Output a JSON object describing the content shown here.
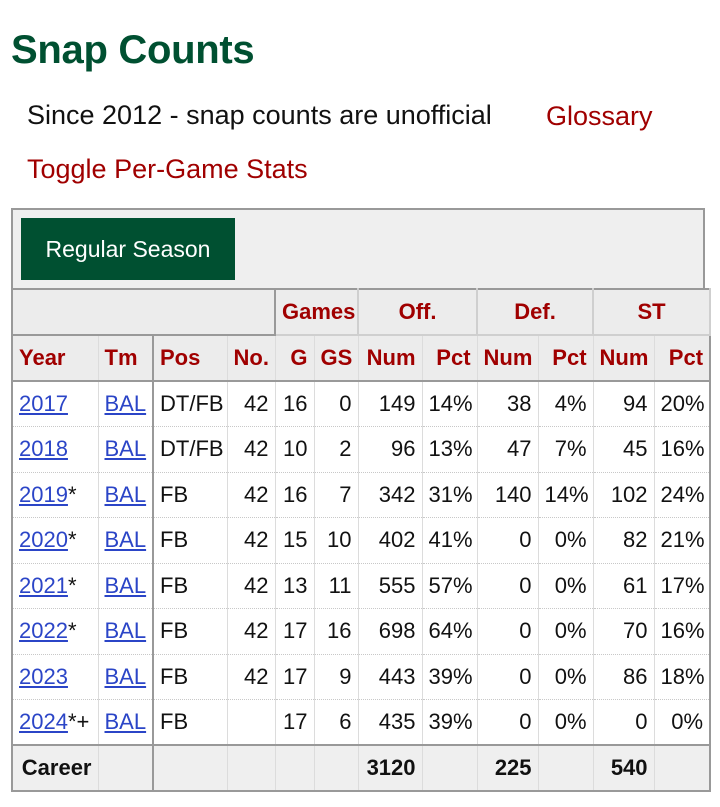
{
  "header": {
    "title": "Snap Counts",
    "subtitle": "Since 2012 - snap counts are unofficial",
    "glossary_link": "Glossary",
    "toggle_link": "Toggle Per-Game Stats"
  },
  "tabs": {
    "active_label": "Regular Season"
  },
  "table": {
    "over_headers": {
      "games": "Games",
      "off": "Off.",
      "def": "Def.",
      "st": "ST"
    },
    "columns": [
      "Year",
      "Tm",
      "Pos",
      "No.",
      "G",
      "GS",
      "Num",
      "Pct",
      "Num",
      "Pct",
      "Num",
      "Pct"
    ],
    "rows": [
      {
        "year": "2017",
        "mark": "",
        "tm": "BAL",
        "pos": "DT/FB",
        "no": "42",
        "g": "16",
        "gs": "0",
        "off_num": "149",
        "off_pct": "14%",
        "def_num": "38",
        "def_pct": "4%",
        "st_num": "94",
        "st_pct": "20%"
      },
      {
        "year": "2018",
        "mark": "",
        "tm": "BAL",
        "pos": "DT/FB",
        "no": "42",
        "g": "10",
        "gs": "2",
        "off_num": "96",
        "off_pct": "13%",
        "def_num": "47",
        "def_pct": "7%",
        "st_num": "45",
        "st_pct": "16%"
      },
      {
        "year": "2019",
        "mark": "*",
        "tm": "BAL",
        "pos": "FB",
        "no": "42",
        "g": "16",
        "gs": "7",
        "off_num": "342",
        "off_pct": "31%",
        "def_num": "140",
        "def_pct": "14%",
        "st_num": "102",
        "st_pct": "24%"
      },
      {
        "year": "2020",
        "mark": "*",
        "tm": "BAL",
        "pos": "FB",
        "no": "42",
        "g": "15",
        "gs": "10",
        "off_num": "402",
        "off_pct": "41%",
        "def_num": "0",
        "def_pct": "0%",
        "st_num": "82",
        "st_pct": "21%"
      },
      {
        "year": "2021",
        "mark": "*",
        "tm": "BAL",
        "pos": "FB",
        "no": "42",
        "g": "13",
        "gs": "11",
        "off_num": "555",
        "off_pct": "57%",
        "def_num": "0",
        "def_pct": "0%",
        "st_num": "61",
        "st_pct": "17%"
      },
      {
        "year": "2022",
        "mark": "*",
        "tm": "BAL",
        "pos": "FB",
        "no": "42",
        "g": "17",
        "gs": "16",
        "off_num": "698",
        "off_pct": "64%",
        "def_num": "0",
        "def_pct": "0%",
        "st_num": "70",
        "st_pct": "16%"
      },
      {
        "year": "2023",
        "mark": "",
        "tm": "BAL",
        "pos": "FB",
        "no": "42",
        "g": "17",
        "gs": "9",
        "off_num": "443",
        "off_pct": "39%",
        "def_num": "0",
        "def_pct": "0%",
        "st_num": "86",
        "st_pct": "18%"
      },
      {
        "year": "2024",
        "mark": "*+",
        "tm": "BAL",
        "pos": "FB",
        "no": "",
        "g": "17",
        "gs": "6",
        "off_num": "435",
        "off_pct": "39%",
        "def_num": "0",
        "def_pct": "0%",
        "st_num": "0",
        "st_pct": "0%"
      }
    ],
    "career": {
      "label": "Career",
      "off_num": "3120",
      "def_num": "225",
      "st_num": "540"
    }
  },
  "colors": {
    "brand_green": "#005031",
    "header_red": "#a00000",
    "link_blue": "#2b45c7"
  }
}
